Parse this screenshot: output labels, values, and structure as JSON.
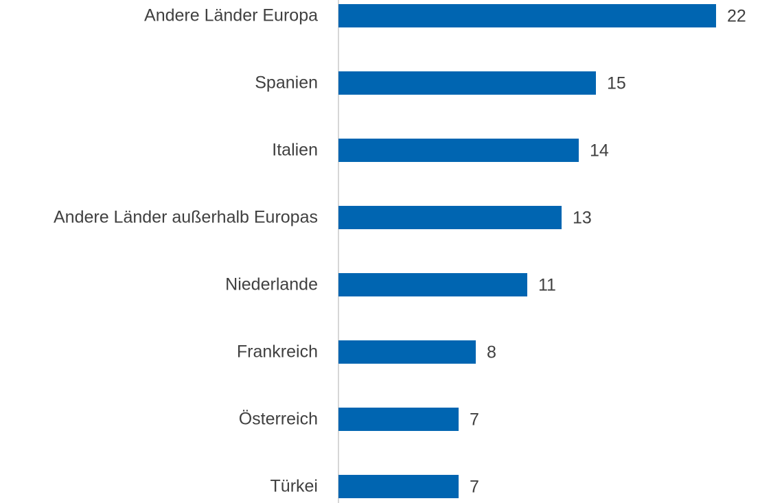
{
  "chart_data": {
    "type": "hbar",
    "categories": [
      "Andere Länder Europa",
      "Spanien",
      "Italien",
      "Andere Länder außerhalb Europas",
      "Niederlande",
      "Frankreich",
      "Österreich",
      "Türkei"
    ],
    "values": [
      22,
      15,
      14,
      13,
      11,
      8,
      7,
      7
    ],
    "color": "#0065b1"
  }
}
